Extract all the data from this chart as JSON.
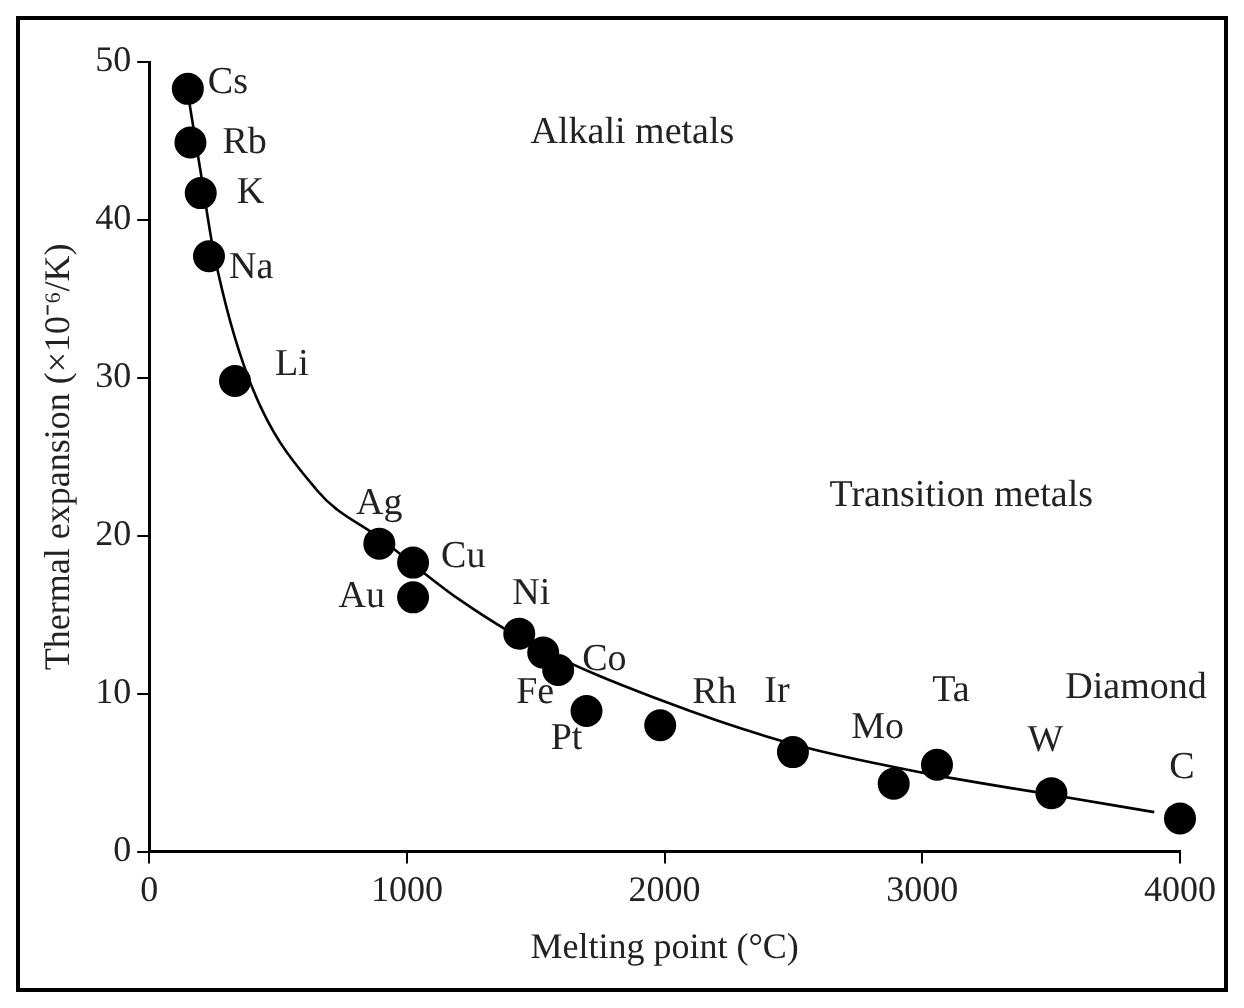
{
  "chart_data": {
    "type": "scatter",
    "xlabel": "Melting point (°C)",
    "ylabel": "Thermal expansion (×10⁻⁶/K)",
    "xlim": [
      0,
      4000
    ],
    "xticks": [
      0,
      1000,
      2000,
      3000,
      4000
    ],
    "ylim": [
      0,
      50
    ],
    "yticks": [
      0,
      10,
      20,
      30,
      40,
      50
    ],
    "grid": false,
    "legend": false,
    "marker": "circle",
    "series": [
      {
        "type": "scatter",
        "color": "#000000",
        "x": [
          150,
          160,
          200,
          232,
          333,
          893,
          1024,
          1024,
          1436,
          1529,
          1587,
          1697,
          1983,
          2498,
          2889,
          3057,
          3501,
          4000
        ],
        "values": [
          48.3,
          44.9,
          41.7,
          37.7,
          29.8,
          19.5,
          18.3,
          16.1,
          13.8,
          12.6,
          11.5,
          8.9,
          8.0,
          6.3,
          4.3,
          5.5,
          3.7,
          2.1
        ]
      },
      {
        "type": "line",
        "color": "#000000",
        "marker": "none",
        "x": [
          150,
          200,
          250,
          385,
          650,
          900,
          1200,
          1500,
          2000,
          2500,
          3000,
          3500,
          3900
        ],
        "values": [
          48,
          43,
          38,
          30,
          22.9,
          19.8,
          16,
          13,
          9.5,
          6.8,
          5.0,
          3.6,
          2.5
        ]
      }
    ],
    "annotations": [
      "Alkali metals",
      "Transition metals",
      {
        "text": "Cs",
        "x": 150,
        "y": 48.3
      },
      {
        "text": "Rb",
        "x": 160,
        "y": 44.9
      },
      {
        "text": "K",
        "x": 200,
        "y": 41.7
      },
      {
        "text": "Na",
        "x": 232,
        "y": 37.7
      },
      {
        "text": "Li",
        "x": 333,
        "y": 29.8
      },
      {
        "text": "Ag",
        "x": 893,
        "y": 19.5
      },
      {
        "text": "Cu",
        "x": 1024,
        "y": 18.3
      },
      {
        "text": "Au",
        "x": 1024,
        "y": 16.1
      },
      {
        "text": "Ni",
        "x": 1436,
        "y": 13.8
      },
      {
        "text": "Fe",
        "x": 1529,
        "y": 12.6
      },
      {
        "text": "Co",
        "x": 1587,
        "y": 11.5
      },
      {
        "text": "Pt",
        "x": 1697,
        "y": 8.9
      },
      {
        "text": "Rh",
        "x": 1983,
        "y": 8.0
      },
      {
        "text": "Ir",
        "x": 2498,
        "y": 6.3
      },
      {
        "text": "Mo",
        "x": 2889,
        "y": 4.3
      },
      {
        "text": "Ta",
        "x": 3057,
        "y": 5.5
      },
      {
        "text": "W",
        "x": 3501,
        "y": 3.7
      },
      {
        "text": "Diamond",
        "x": 4000,
        "y": 2.1
      },
      {
        "text": "C",
        "x": 4000,
        "y": 2.1
      }
    ]
  }
}
